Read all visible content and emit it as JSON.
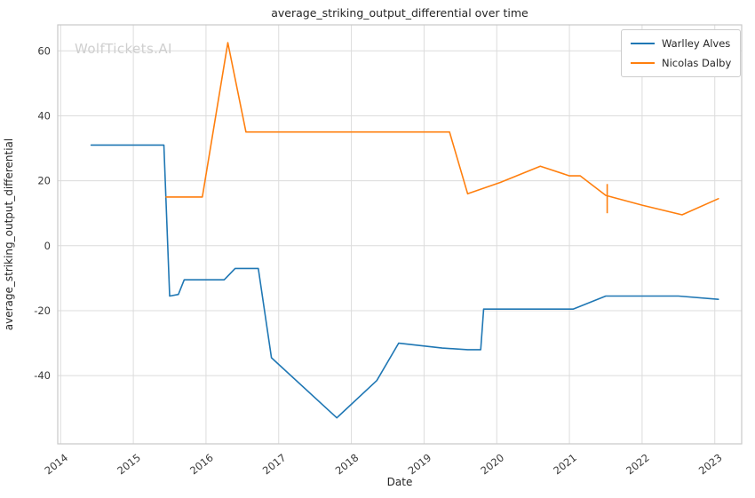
{
  "watermark": "WolfTickets.AI",
  "chart_data": {
    "type": "line",
    "title": "average_striking_output_differential over time",
    "xlabel": "Date",
    "ylabel": "average_striking_output_differential",
    "x_range": [
      2013.96,
      2023.37
    ],
    "y_range": [
      -61,
      68
    ],
    "x_ticks": [
      2014,
      2015,
      2016,
      2017,
      2018,
      2019,
      2020,
      2021,
      2022,
      2023
    ],
    "y_ticks": [
      -40,
      -20,
      0,
      20,
      40,
      60
    ],
    "grid": true,
    "legend_position": "top-right",
    "series": [
      {
        "name": "Warlley Alves",
        "color": "#1f77b4",
        "points": [
          [
            2014.42,
            31
          ],
          [
            2015.42,
            31
          ],
          [
            2015.5,
            -15.5
          ],
          [
            2015.62,
            -15
          ],
          [
            2015.7,
            -10.5
          ],
          [
            2016.25,
            -10.5
          ],
          [
            2016.4,
            -7
          ],
          [
            2016.72,
            -7
          ],
          [
            2016.9,
            -34.5
          ],
          [
            2017.8,
            -53
          ],
          [
            2018.35,
            -41.5
          ],
          [
            2018.65,
            -30
          ],
          [
            2019.25,
            -31.5
          ],
          [
            2019.6,
            -32
          ],
          [
            2019.78,
            -32
          ],
          [
            2019.82,
            -19.5
          ],
          [
            2021.05,
            -19.5
          ],
          [
            2021.5,
            -15.5
          ],
          [
            2022.5,
            -15.5
          ],
          [
            2023.05,
            -16.5
          ]
        ]
      },
      {
        "name": "Nicolas Dalby",
        "color": "#ff7f0e",
        "points": [
          [
            2015.45,
            15
          ],
          [
            2015.95,
            15
          ],
          [
            2016.3,
            62.5
          ],
          [
            2016.55,
            35
          ],
          [
            2019.35,
            35
          ],
          [
            2019.6,
            16
          ],
          [
            2020.05,
            19.5
          ],
          [
            2020.6,
            24.5
          ],
          [
            2021.0,
            21.5
          ],
          [
            2021.15,
            21.5
          ],
          [
            2021.5,
            15.5
          ],
          [
            2022.0,
            12.5
          ],
          [
            2022.55,
            9.5
          ],
          [
            2023.05,
            14.5
          ]
        ]
      }
    ],
    "extra_segments": [
      {
        "color": "#ff7f0e",
        "points": [
          [
            2021.52,
            19
          ],
          [
            2021.52,
            10
          ]
        ]
      }
    ]
  }
}
